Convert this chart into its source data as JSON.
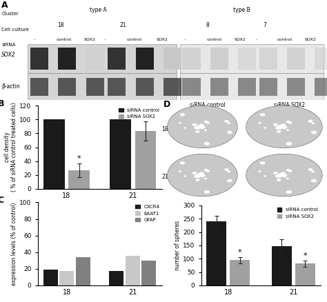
{
  "panel_B": {
    "ylabel": "cell density\n( % of siRNA control treated cells)",
    "xlabel_ticks": [
      "18",
      "21"
    ],
    "ylim": [
      0,
      120
    ],
    "yticks": [
      0,
      20,
      40,
      60,
      80,
      100,
      120
    ],
    "bar_width": 0.32,
    "groups": [
      {
        "label": "18",
        "control_val": 100,
        "control_err": 0,
        "sox2_val": 27,
        "sox2_err": 10
      },
      {
        "label": "21",
        "control_val": 100,
        "control_err": 0,
        "sox2_val": 83,
        "sox2_err": 14
      }
    ],
    "color_control": "#1a1a1a",
    "color_sox2": "#a0a0a0",
    "legend_labels": [
      "siRNA control",
      "siRNA SOX2"
    ]
  },
  "panel_C": {
    "ylabel": "expression levels (% of control)",
    "ylim": [
      0,
      100
    ],
    "yticks": [
      0,
      20,
      40,
      60,
      80,
      100
    ],
    "bar_width": 0.22,
    "groups": [
      {
        "label": "18",
        "cxcr4": 19,
        "eaat1": 17,
        "gfap": 34
      },
      {
        "label": "21",
        "cxcr4": 17,
        "eaat1": 36,
        "gfap": 30
      }
    ],
    "color_cxcr4": "#1a1a1a",
    "color_eaat1": "#c8c8c8",
    "color_gfap": "#808080",
    "legend_labels": [
      "CXCR4",
      "EAAT1",
      "GFAP"
    ]
  },
  "panel_D_spheres": {
    "ylabel": "number of spheres",
    "ylim": [
      0,
      300
    ],
    "yticks": [
      0,
      50,
      100,
      150,
      200,
      250,
      300
    ],
    "bar_width": 0.3,
    "groups": [
      {
        "label": "18",
        "control": 240,
        "control_err": 20,
        "sox2": 95,
        "sox2_err": 12
      },
      {
        "label": "21",
        "control": 148,
        "control_err": 25,
        "sox2": 82,
        "sox2_err": 12
      }
    ],
    "color_control": "#1a1a1a",
    "color_sox2": "#a0a0a0",
    "legend_labels": [
      "siRNA control",
      "siRNA SOX2"
    ]
  },
  "panel_A": {
    "left_bg": "#d5d5d5",
    "right_bg": "#e8e8e8",
    "row_labels": [
      "SOX2",
      "β-actin"
    ],
    "header_labels": [
      "Cluster",
      "Cell culture",
      "siRNA"
    ],
    "type_a_label": "type A",
    "type_b_label": "type B",
    "cell_cultures_a": [
      "18",
      "21"
    ],
    "cell_cultures_b": [
      "8",
      "7"
    ],
    "sirna_labels": [
      "-",
      "control",
      "SOX2",
      "-",
      "control",
      "SOX2"
    ]
  },
  "panel_D_images": {
    "row_labels": [
      "18",
      "21"
    ],
    "col_labels": [
      "siRNA control",
      "siRNA SOX2"
    ],
    "circle_color_light": "#c0c0c0",
    "circle_color_dark": "#888888",
    "bg_color": "#1a1a1a"
  }
}
